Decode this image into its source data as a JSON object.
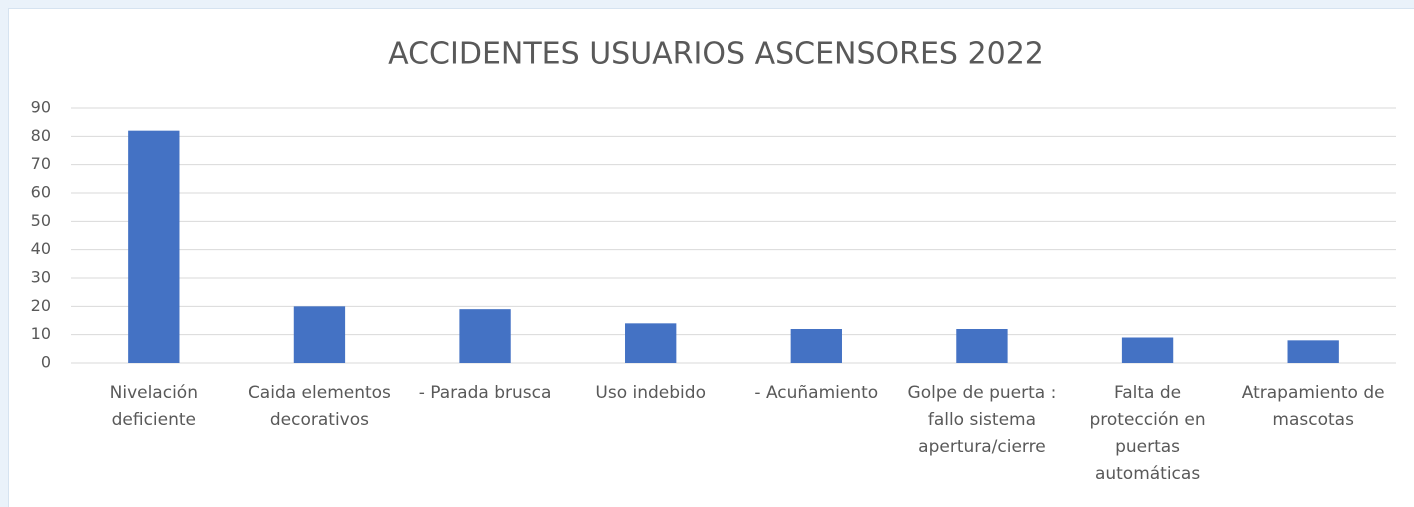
{
  "chart_data": {
    "type": "bar",
    "title": "ACCIDENTES USUARIOS ASCENSORES 2022",
    "categories": [
      "Nivelación deficiente",
      "Caida elementos decorativos",
      "- Parada brusca",
      "Uso indebido",
      "- Acuñamiento",
      "Golpe de puerta : fallo sistema apertura/cierre",
      "Falta de protección en puertas automáticas",
      "Atrapamiento de mascotas"
    ],
    "values": [
      82,
      20,
      19,
      14,
      12,
      12,
      9,
      8
    ],
    "color": "#4472c4",
    "ylim": [
      0,
      90
    ],
    "yticks": [
      0,
      10,
      20,
      30,
      40,
      50,
      60,
      70,
      80,
      90
    ],
    "grid": true
  }
}
